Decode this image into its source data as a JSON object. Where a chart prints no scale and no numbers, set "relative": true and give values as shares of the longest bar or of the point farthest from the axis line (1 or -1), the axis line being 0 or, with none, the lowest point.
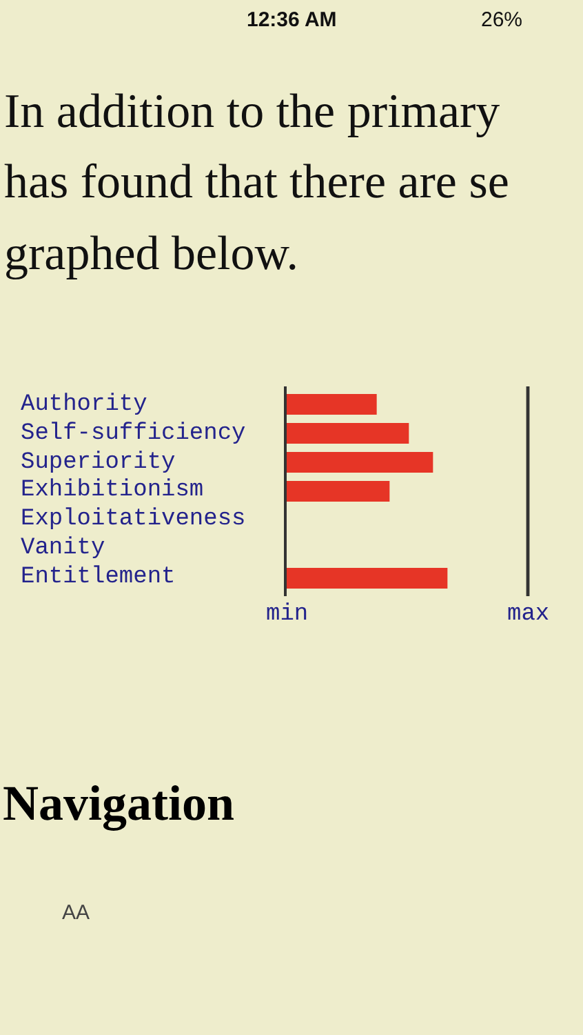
{
  "chart_data": {
    "type": "bar",
    "orientation": "horizontal",
    "relative": true,
    "categories": [
      "Authority",
      "Self-sufficiency",
      "Superiority",
      "Exhibitionism",
      "Exploitativeness",
      "Vanity",
      "Entitlement"
    ],
    "values": [
      0.56,
      0.76,
      0.91,
      0.64,
      0,
      0,
      1
    ],
    "color": "#e63526",
    "ref_lines": [
      {
        "axis": "x",
        "value": 1.5,
        "label": "max",
        "color": "#333333"
      }
    ],
    "annotations": [
      "12:36 AM",
      "26%",
      "In addition to the primary",
      "has found that there are se",
      "graphed below.",
      "min",
      "Navigation",
      "AA"
    ]
  }
}
